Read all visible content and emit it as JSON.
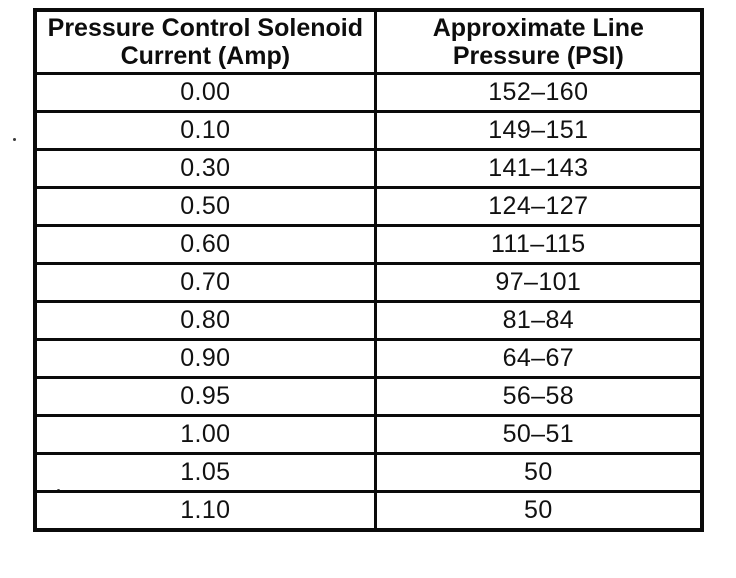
{
  "page": {
    "kind": "scanned-manual-table"
  },
  "colors": {
    "ink": "#0d0d0d",
    "paper": "#ffffff"
  },
  "table": {
    "columns": [
      {
        "line1": "Pressure Control Solenoid",
        "line2": "Current (Amp)"
      },
      {
        "line1": "Approximate Line",
        "line2": "Pressure (PSI)"
      }
    ],
    "rows": [
      {
        "current": "0.00",
        "pressure": "152–160"
      },
      {
        "current": "0.10",
        "pressure": "149–151"
      },
      {
        "current": "0.30",
        "pressure": "141–143"
      },
      {
        "current": "0.50",
        "pressure": "124–127"
      },
      {
        "current": "0.60",
        "pressure": "111–115"
      },
      {
        "current": "0.70",
        "pressure": "97–101"
      },
      {
        "current": "0.80",
        "pressure": "81–84"
      },
      {
        "current": "0.90",
        "pressure": "64–67"
      },
      {
        "current": "0.95",
        "pressure": "56–58"
      },
      {
        "current": "1.00",
        "pressure": "50–51"
      },
      {
        "current": "1.05",
        "pressure": "50"
      },
      {
        "current": "1.10",
        "pressure": "50"
      }
    ]
  }
}
